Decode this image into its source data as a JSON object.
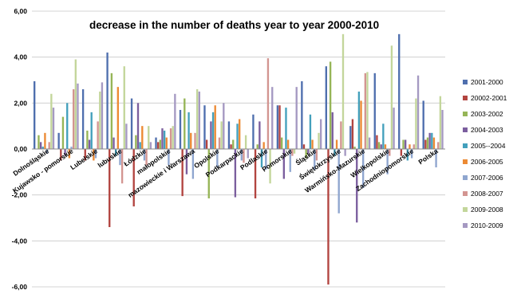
{
  "chart_data": {
    "type": "bar",
    "title": "decrease in the number of deaths year to year 2000-2010",
    "xlabel": "",
    "ylabel": "",
    "ylim": [
      -6,
      6
    ],
    "yticks": [
      "6,00",
      "4,00",
      "2,00",
      "0,00",
      "-2,00",
      "-4,00",
      "-6,00"
    ],
    "grid": true,
    "legend_position": "right",
    "categories": [
      "Dolnośląskie",
      "Kujawsko - pomorskie",
      "Lubelskie",
      "lubuskie",
      "Łódzkie",
      "małopolskie",
      "mazowieckie i Warszawa",
      "Opolskie",
      "Podkarpackie",
      "Podlaskie",
      "Pomorskie",
      "Śląskie",
      "Świętokrzyskie",
      "Warmińsko-Mazurskie",
      "Wielkopolskie",
      "Zachodniopomorskie",
      "Polska"
    ],
    "series": [
      {
        "name": "2001-2000",
        "color": "#4F6FAE",
        "values": [
          2.95,
          0.7,
          2.6,
          4.2,
          2.2,
          0.5,
          1.7,
          1.9,
          1.2,
          1.5,
          1.9,
          2.95,
          3.6,
          1.0,
          3.3,
          5.0,
          2.1
        ]
      },
      {
        "name": "20002-2001",
        "color": "#B24440",
        "values": [
          0.0,
          -0.5,
          -0.5,
          -3.4,
          -2.5,
          0.3,
          -2.05,
          0.4,
          0.2,
          -2.15,
          1.9,
          0.2,
          -5.9,
          1.3,
          0.6,
          -0.3,
          0.4
        ]
      },
      {
        "name": "2003-2002",
        "color": "#96B557",
        "values": [
          0.6,
          1.4,
          0.8,
          3.3,
          0.6,
          0.4,
          2.2,
          -2.15,
          0.4,
          0.2,
          0.5,
          -0.4,
          3.8,
          0.1,
          0.3,
          0.4,
          0.5
        ]
      },
      {
        "name": "2004-2003",
        "color": "#7B5E9E",
        "values": [
          0.3,
          -0.3,
          0.4,
          0.5,
          2.0,
          0.9,
          -1.1,
          1.2,
          -2.1,
          1.2,
          -1.3,
          -0.2,
          1.6,
          -3.2,
          0.2,
          0.4,
          0.7
        ]
      },
      {
        "name": "2005--2004",
        "color": "#43A0BC",
        "values": [
          0.1,
          2.0,
          1.6,
          -0.3,
          0.3,
          0.8,
          1.6,
          1.6,
          1.1,
          -0.8,
          1.8,
          1.5,
          -0.3,
          2.5,
          1.1,
          -0.5,
          0.7
        ]
      },
      {
        "name": "2006-2005",
        "color": "#EC8A34",
        "values": [
          0.7,
          -0.4,
          -0.5,
          2.7,
          1.0,
          0.5,
          0.7,
          1.9,
          1.3,
          0.3,
          0.4,
          0.4,
          0.4,
          2.1,
          0.2,
          0.2,
          0.5
        ]
      },
      {
        "name": "2007-2006",
        "color": "#8FA6CF",
        "values": [
          -0.2,
          0.1,
          -0.4,
          -0.7,
          -0.5,
          -0.7,
          -1.3,
          -0.8,
          -0.5,
          -0.9,
          -1.0,
          -0.9,
          -2.8,
          -1.7,
          -1.1,
          -0.4,
          -0.8
        ]
      },
      {
        "name": "2008-2007",
        "color": "#D39591",
        "values": [
          0.3,
          2.6,
          1.2,
          -1.5,
          -0.7,
          0.9,
          0.7,
          0.5,
          -0.6,
          3.95,
          -0.3,
          -0.5,
          1.2,
          3.3,
          -0.3,
          0.2,
          0.3
        ]
      },
      {
        "name": "2009-2008",
        "color": "#C3D69B",
        "values": [
          2.4,
          3.9,
          2.5,
          3.6,
          1.0,
          1.0,
          2.6,
          1.2,
          0.6,
          -1.5,
          -0.2,
          0.7,
          5.0,
          3.35,
          4.5,
          2.2,
          2.3
        ]
      },
      {
        "name": "2010-2009",
        "color": "#A599C2",
        "values": [
          1.8,
          2.85,
          2.9,
          1.1,
          0.3,
          2.4,
          2.5,
          2.0,
          -0.4,
          2.7,
          2.7,
          1.3,
          -0.3,
          0.5,
          1.8,
          3.2,
          1.7
        ]
      }
    ]
  }
}
